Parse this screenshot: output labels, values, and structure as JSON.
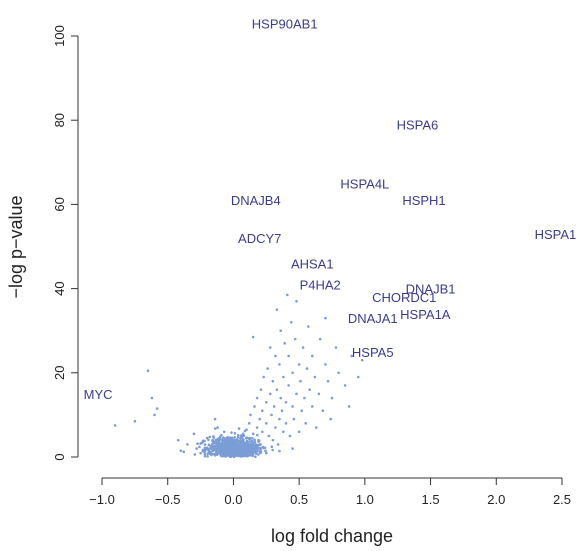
{
  "chart_data": {
    "type": "scatter",
    "title": "",
    "xlabel": "log fold change",
    "ylabel": "−log p−value",
    "xlim": [
      -1.05,
      2.55
    ],
    "ylim": [
      -2,
      104
    ],
    "x_ticks": [
      -1.0,
      -0.5,
      0.0,
      0.5,
      1.0,
      1.5,
      2.0,
      2.5
    ],
    "x_tick_labels": [
      "−1.0",
      "−0.5",
      "0.0",
      "0.5",
      "1.0",
      "1.5",
      "2.0",
      "2.5"
    ],
    "y_ticks": [
      0,
      20,
      40,
      60,
      80,
      100
    ],
    "y_tick_labels": [
      "0",
      "20",
      "40",
      "60",
      "80",
      "100"
    ],
    "grid": false,
    "point_color": "#7b9dd6",
    "label_color": "#3b3b8f",
    "background_points": [
      [
        -0.65,
        20.5
      ],
      [
        -0.62,
        14
      ],
      [
        -0.6,
        10
      ],
      [
        -0.58,
        11.5
      ],
      [
        -0.42,
        4
      ],
      [
        -0.4,
        1.5
      ],
      [
        -0.35,
        3
      ],
      [
        -0.3,
        5.5
      ],
      [
        -0.28,
        2
      ],
      [
        -0.25,
        3.2
      ],
      [
        -0.22,
        1.2
      ],
      [
        -0.2,
        4.5
      ],
      [
        -0.2,
        2.2
      ],
      [
        -0.18,
        1
      ],
      [
        -0.16,
        3.8
      ],
      [
        -0.15,
        2.6
      ],
      [
        -0.14,
        9
      ],
      [
        -0.13,
        1.6
      ],
      [
        -0.12,
        7
      ],
      [
        -0.11,
        3
      ],
      [
        -0.1,
        2
      ],
      [
        -0.1,
        4.8
      ],
      [
        -0.09,
        1.2
      ],
      [
        -0.08,
        2.6
      ],
      [
        -0.07,
        6
      ],
      [
        -0.06,
        1.5
      ],
      [
        -0.06,
        3.4
      ],
      [
        -0.05,
        2.2
      ],
      [
        -0.04,
        1
      ],
      [
        -0.03,
        4
      ],
      [
        -0.03,
        2.8
      ],
      [
        -0.02,
        1.6
      ],
      [
        -0.01,
        3.2
      ],
      [
        0.0,
        1.8
      ],
      [
        0.0,
        2.5
      ],
      [
        0.01,
        1.2
      ],
      [
        0.02,
        3
      ],
      [
        0.02,
        2
      ],
      [
        0.03,
        4.2
      ],
      [
        0.04,
        1.5
      ],
      [
        0.05,
        2.6
      ],
      [
        0.05,
        3.6
      ],
      [
        0.06,
        1.2
      ],
      [
        0.07,
        5
      ],
      [
        0.08,
        2.2
      ],
      [
        0.08,
        3
      ],
      [
        0.09,
        1.6
      ],
      [
        0.1,
        4.5
      ],
      [
        0.1,
        6.5
      ],
      [
        0.11,
        2.8
      ],
      [
        0.12,
        8
      ],
      [
        0.12,
        1.4
      ],
      [
        0.13,
        10
      ],
      [
        0.14,
        3.8
      ],
      [
        0.15,
        5.5
      ],
      [
        0.15,
        28.5
      ],
      [
        0.16,
        12
      ],
      [
        0.17,
        2.4
      ],
      [
        0.18,
        7
      ],
      [
        0.18,
        14
      ],
      [
        0.19,
        4
      ],
      [
        0.2,
        9
      ],
      [
        0.2,
        3
      ],
      [
        0.21,
        16
      ],
      [
        0.22,
        6
      ],
      [
        0.22,
        11
      ],
      [
        0.23,
        19
      ],
      [
        0.24,
        2.2
      ],
      [
        0.25,
        8
      ],
      [
        0.25,
        13
      ],
      [
        0.26,
        21
      ],
      [
        0.27,
        5
      ],
      [
        0.28,
        15
      ],
      [
        0.28,
        26
      ],
      [
        0.29,
        10
      ],
      [
        0.3,
        4
      ],
      [
        0.3,
        18
      ],
      [
        0.31,
        12
      ],
      [
        0.32,
        7
      ],
      [
        0.32,
        24
      ],
      [
        0.33,
        16
      ],
      [
        0.34,
        3
      ],
      [
        0.35,
        9
      ],
      [
        0.35,
        22
      ],
      [
        0.36,
        14
      ],
      [
        0.36,
        30
      ],
      [
        0.37,
        11
      ],
      [
        0.38,
        6
      ],
      [
        0.38,
        19
      ],
      [
        0.39,
        27
      ],
      [
        0.4,
        13
      ],
      [
        0.4,
        8
      ],
      [
        0.41,
        38.5
      ],
      [
        0.42,
        17
      ],
      [
        0.42,
        24
      ],
      [
        0.43,
        5
      ],
      [
        0.44,
        32
      ],
      [
        0.45,
        12
      ],
      [
        0.45,
        20
      ],
      [
        0.46,
        9
      ],
      [
        0.47,
        28
      ],
      [
        0.48,
        15
      ],
      [
        0.48,
        37
      ],
      [
        0.5,
        22
      ],
      [
        0.5,
        6
      ],
      [
        0.51,
        18
      ],
      [
        0.52,
        11
      ],
      [
        0.53,
        26
      ],
      [
        0.54,
        14
      ],
      [
        0.55,
        8
      ],
      [
        0.56,
        21
      ],
      [
        0.57,
        31
      ],
      [
        0.58,
        16
      ],
      [
        0.6,
        12
      ],
      [
        0.6,
        24
      ],
      [
        0.62,
        19
      ],
      [
        0.63,
        7
      ],
      [
        0.65,
        15
      ],
      [
        0.66,
        28
      ],
      [
        0.68,
        11
      ],
      [
        0.7,
        22
      ],
      [
        0.7,
        33
      ],
      [
        0.72,
        18
      ],
      [
        0.74,
        9
      ],
      [
        0.75,
        14
      ],
      [
        0.78,
        26
      ],
      [
        0.8,
        20
      ],
      [
        0.85,
        17
      ],
      [
        0.88,
        12
      ],
      [
        0.9,
        24
      ],
      [
        0.95,
        19
      ],
      [
        0.98,
        23
      ],
      [
        -0.9,
        7.5
      ],
      [
        -0.75,
        8.5
      ],
      [
        0.33,
        35
      ],
      [
        -0.05,
        0.5
      ],
      [
        0.05,
        0.8
      ],
      [
        0.15,
        0.6
      ],
      [
        -0.15,
        0.7
      ],
      [
        0.25,
        1
      ],
      [
        -0.25,
        0.9
      ],
      [
        0.35,
        1.4
      ],
      [
        0.45,
        2
      ]
    ],
    "labeled_points": [
      {
        "name": "HSP90AB1",
        "x": 0.39,
        "y": 103
      },
      {
        "name": "HSPA6",
        "x": 1.4,
        "y": 79
      },
      {
        "name": "HSPA4L",
        "x": 1.0,
        "y": 65
      },
      {
        "name": "DNAJB4",
        "x": 0.17,
        "y": 61
      },
      {
        "name": "HSPH1",
        "x": 1.45,
        "y": 61
      },
      {
        "name": "HSPA1",
        "x": 2.45,
        "y": 53
      },
      {
        "name": "ADCY7",
        "x": 0.2,
        "y": 52
      },
      {
        "name": "AHSA1",
        "x": 0.6,
        "y": 46
      },
      {
        "name": "P4HA2",
        "x": 0.66,
        "y": 41
      },
      {
        "name": "DNAJB1",
        "x": 1.5,
        "y": 40
      },
      {
        "name": "CHORDC1",
        "x": 1.3,
        "y": 38
      },
      {
        "name": "DNAJA1",
        "x": 1.06,
        "y": 33
      },
      {
        "name": "HSPA1A",
        "x": 1.46,
        "y": 34
      },
      {
        "name": "HSPA5",
        "x": 1.06,
        "y": 25
      },
      {
        "name": "MYC",
        "x": -1.03,
        "y": 15
      }
    ]
  }
}
